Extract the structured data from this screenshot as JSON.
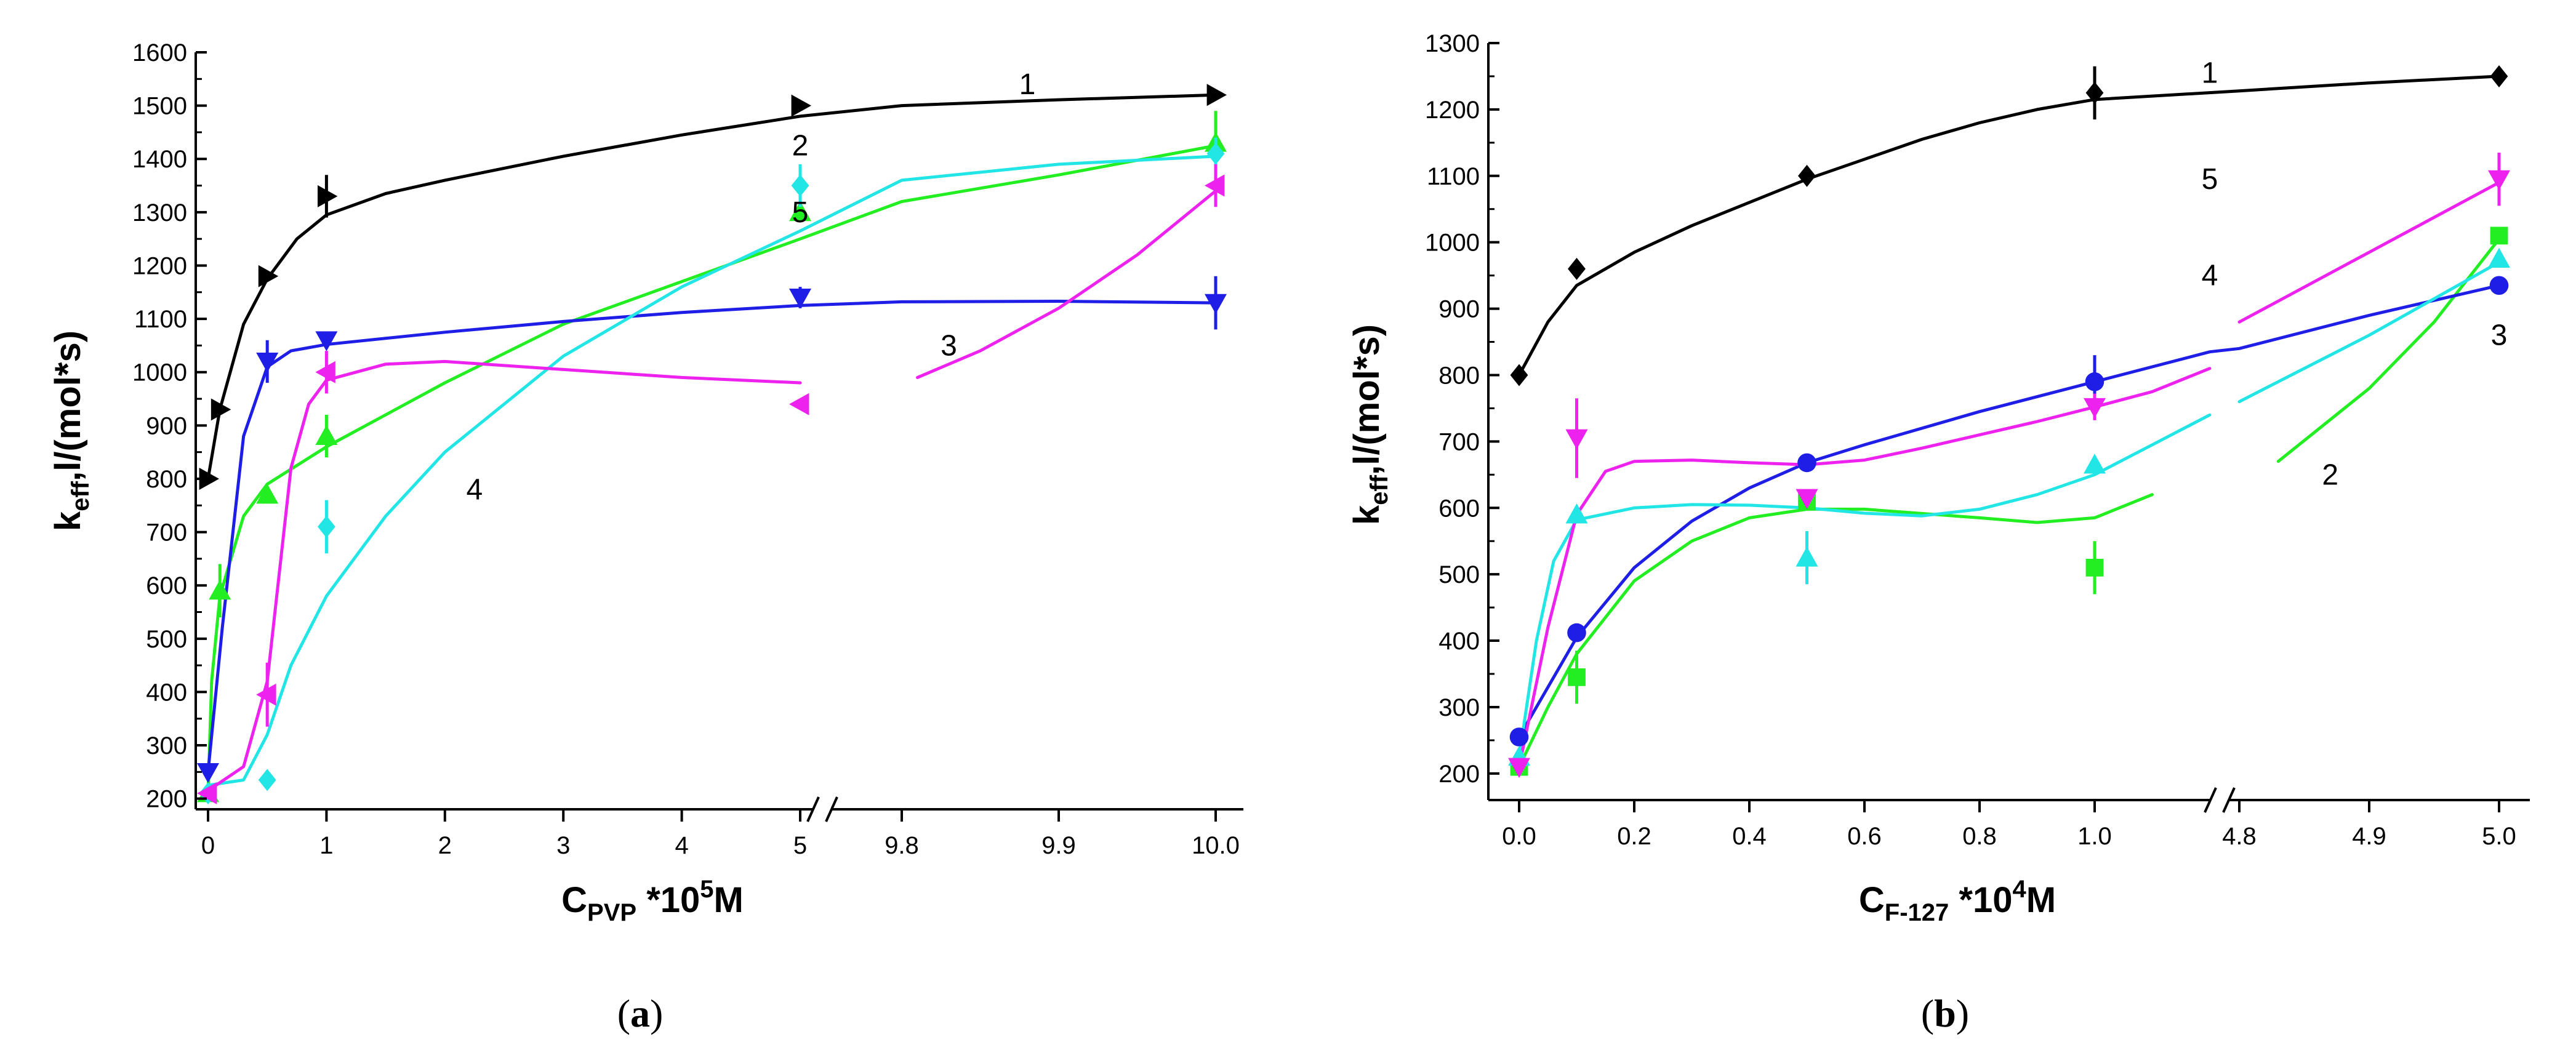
{
  "chart_data": [
    {
      "panel": "(a)",
      "panel_letter": "a",
      "type": "line",
      "title": "",
      "xlabel": {
        "main": "C",
        "sub": "PVP",
        "suffix": " *10",
        "sup": "5",
        "unit": "M"
      },
      "ylabel": {
        "main": "k",
        "sub": "eff",
        "rest": ",l/(mol*s)"
      },
      "ylim": [
        180,
        1600
      ],
      "y_ticks": [
        200,
        300,
        400,
        500,
        600,
        700,
        800,
        900,
        1000,
        1100,
        1200,
        1300,
        1400,
        1500,
        1600
      ],
      "x_break": "5 // 9.8",
      "x_ticks": [
        {
          "label": "0",
          "value": 0
        },
        {
          "label": "1",
          "value": 1
        },
        {
          "label": "2",
          "value": 2
        },
        {
          "label": "3",
          "value": 3
        },
        {
          "label": "4",
          "value": 4
        },
        {
          "label": "5",
          "value": 5
        },
        {
          "label": "9.8",
          "value": 9.8
        },
        {
          "label": "9.9",
          "value": 9.9
        },
        {
          "label": "10.0",
          "value": 10.0
        }
      ],
      "series": [
        {
          "name": "1",
          "color": "#000000",
          "marker": "triangle-right",
          "points": [
            [
              0,
              800
            ],
            [
              0.1,
              930
            ],
            [
              0.5,
              1180
            ],
            [
              1,
              1330
            ],
            [
              5,
              1500
            ],
            [
              10,
              1520
            ]
          ],
          "errors": [
            0,
            0,
            0,
            40,
            0,
            0
          ],
          "curve": [
            [
              0,
              800
            ],
            [
              0.1,
              930
            ],
            [
              0.3,
              1090
            ],
            [
              0.5,
              1175
            ],
            [
              0.75,
              1250
            ],
            [
              1,
              1295
            ],
            [
              1.5,
              1335
            ],
            [
              2,
              1360
            ],
            [
              3,
              1405
            ],
            [
              4,
              1445
            ],
            [
              5,
              1480
            ],
            [
              9.8,
              1500
            ],
            [
              9.9,
              1511
            ],
            [
              10,
              1520
            ]
          ],
          "label_pos": [
            9.88,
            1540
          ]
        },
        {
          "name": "2",
          "color": "#22ee22",
          "marker": "triangle-up",
          "points": [
            [
              0,
              210
            ],
            [
              0.1,
              590
            ],
            [
              0.5,
              770
            ],
            [
              1,
              880
            ],
            [
              5,
              1300
            ],
            [
              10,
              1430
            ]
          ],
          "errors": [
            0,
            50,
            0,
            40,
            0,
            60
          ],
          "curve": [
            [
              0,
              210
            ],
            [
              0.03,
              420
            ],
            [
              0.1,
              580
            ],
            [
              0.3,
              730
            ],
            [
              0.5,
              790
            ],
            [
              1,
              860
            ],
            [
              2,
              980
            ],
            [
              3,
              1090
            ],
            [
              4,
              1170
            ],
            [
              5,
              1250
            ],
            [
              9.8,
              1320
            ],
            [
              9.9,
              1370
            ],
            [
              10,
              1425
            ]
          ],
          "label_pos": [
            10.02,
            1425
          ]
        },
        {
          "name": "3",
          "color": "#1e1ee6",
          "marker": "triangle-down",
          "points": [
            [
              0,
              250
            ],
            [
              0.5,
              1020
            ],
            [
              1,
              1060
            ],
            [
              5,
              1140
            ],
            [
              10,
              1130
            ]
          ],
          "errors": [
            0,
            40,
            0,
            20,
            50
          ],
          "curve": [
            [
              0,
              250
            ],
            [
              0.12,
              520
            ],
            [
              0.3,
              880
            ],
            [
              0.5,
              1010
            ],
            [
              0.7,
              1040
            ],
            [
              1,
              1052
            ],
            [
              2,
              1075
            ],
            [
              3,
              1095
            ],
            [
              4,
              1112
            ],
            [
              5,
              1125
            ],
            [
              9.8,
              1132
            ],
            [
              9.9,
              1133
            ],
            [
              10,
              1130
            ]
          ],
          "label_pos": [
            9.83,
            1050
          ]
        },
        {
          "name": "4",
          "color": "#22e5e5",
          "marker": "diamond",
          "points": [
            [
              0,
              210
            ],
            [
              0.5,
              235
            ],
            [
              1,
              710
            ],
            [
              5,
              1350
            ],
            [
              10,
              1410
            ]
          ],
          "errors": [
            0,
            0,
            50,
            40,
            30
          ],
          "curve": [
            [
              0,
              225
            ],
            [
              0.3,
              235
            ],
            [
              0.5,
              320
            ],
            [
              0.7,
              450
            ],
            [
              1,
              580
            ],
            [
              1.5,
              730
            ],
            [
              2,
              850
            ],
            [
              3,
              1030
            ],
            [
              4,
              1160
            ],
            [
              5,
              1265
            ],
            [
              9.8,
              1360
            ],
            [
              9.9,
              1390
            ],
            [
              10,
              1405
            ]
          ],
          "label_pos": [
            2.25,
            780
          ]
        },
        {
          "name": "5",
          "color": "#ee22ee",
          "marker": "triangle-left",
          "points": [
            [
              0,
              210
            ],
            [
              0.5,
              395
            ],
            [
              1,
              1000
            ],
            [
              5,
              940
            ],
            [
              10,
              1350
            ]
          ],
          "errors": [
            0,
            60,
            40,
            0,
            40
          ],
          "curve": [
            [
              0,
              215
            ],
            [
              0.3,
              260
            ],
            [
              0.5,
              420
            ],
            [
              0.7,
              820
            ],
            [
              0.85,
              940
            ],
            [
              1,
              985
            ],
            [
              1.5,
              1015
            ],
            [
              2,
              1020
            ],
            [
              3,
              1005
            ],
            [
              4,
              990
            ],
            [
              5,
              980
            ]
          ],
          "curve2": [
            [
              9.81,
              990
            ],
            [
              9.85,
              1040
            ],
            [
              9.9,
              1120
            ],
            [
              9.95,
              1220
            ],
            [
              10,
              1340
            ]
          ],
          "label_pos": [
            9.78,
            1300
          ]
        }
      ]
    },
    {
      "panel": "(b)",
      "panel_letter": "b",
      "type": "line",
      "title": "",
      "xlabel": {
        "main": "C",
        "sub": "F-127",
        "suffix": " *10",
        "sup": "4",
        "unit": "M"
      },
      "ylabel": {
        "main": "k",
        "sub": "eff",
        "rest": ",l/(mol*s)"
      },
      "ylim": [
        160,
        1300
      ],
      "y_ticks": [
        200,
        300,
        400,
        500,
        600,
        700,
        800,
        900,
        1000,
        1100,
        1200,
        1300
      ],
      "x_break": "1.0 // 4.8",
      "x_ticks": [
        {
          "label": "0.0",
          "value": 0
        },
        {
          "label": "0.2",
          "value": 0.2
        },
        {
          "label": "0.4",
          "value": 0.4
        },
        {
          "label": "0.6",
          "value": 0.6
        },
        {
          "label": "0.8",
          "value": 0.8
        },
        {
          "label": "1.0",
          "value": 1.0
        },
        {
          "label": "4.8",
          "value": 4.8
        },
        {
          "label": "4.9",
          "value": 4.9
        },
        {
          "label": "5.0",
          "value": 5.0
        }
      ],
      "series": [
        {
          "name": "1",
          "color": "#000000",
          "marker": "diamond",
          "points": [
            [
              0,
              800
            ],
            [
              0.1,
              960
            ],
            [
              0.5,
              1100
            ],
            [
              1,
              1225
            ],
            [
              5,
              1250
            ]
          ],
          "errors": [
            0,
            0,
            0,
            40,
            0
          ],
          "curve": [
            [
              0,
              800
            ],
            [
              0.05,
              880
            ],
            [
              0.1,
              935
            ],
            [
              0.2,
              985
            ],
            [
              0.3,
              1025
            ],
            [
              0.4,
              1060
            ],
            [
              0.5,
              1095
            ],
            [
              0.6,
              1125
            ],
            [
              0.7,
              1155
            ],
            [
              0.8,
              1180
            ],
            [
              0.9,
              1200
            ],
            [
              1,
              1215
            ],
            [
              4.8,
              1228
            ],
            [
              4.9,
              1240
            ],
            [
              5,
              1250
            ]
          ],
          "label_pos": [
            5.06,
            1255
          ]
        },
        {
          "name": "2",
          "color": "#22ee22",
          "marker": "square",
          "points": [
            [
              0,
              210
            ],
            [
              0.1,
              345
            ],
            [
              0.5,
              610
            ],
            [
              1,
              510
            ],
            [
              5,
              1010
            ]
          ],
          "errors": [
            0,
            40,
            0,
            40,
            0
          ],
          "curve": [
            [
              0,
              210
            ],
            [
              0.05,
              300
            ],
            [
              0.1,
              380
            ],
            [
              0.2,
              490
            ],
            [
              0.3,
              550
            ],
            [
              0.4,
              585
            ],
            [
              0.5,
              598
            ],
            [
              0.6,
              598
            ],
            [
              0.8,
              585
            ],
            [
              0.9,
              578
            ],
            [
              1,
              585
            ],
            [
              1.1,
              620
            ]
          ],
          "curve2": [
            [
              4.83,
              670
            ],
            [
              4.9,
              780
            ],
            [
              4.95,
              880
            ],
            [
              5,
              1005
            ]
          ],
          "label_pos": [
            4.87,
            650
          ]
        },
        {
          "name": "3",
          "color": "#1e1ee6",
          "marker": "circle",
          "points": [
            [
              0,
              255
            ],
            [
              0.1,
              412
            ],
            [
              0.5,
              668
            ],
            [
              1,
              790
            ],
            [
              5,
              935
            ]
          ],
          "errors": [
            0,
            0,
            0,
            40,
            0
          ],
          "curve": [
            [
              0,
              255
            ],
            [
              0.05,
              330
            ],
            [
              0.1,
              405
            ],
            [
              0.2,
              510
            ],
            [
              0.3,
              580
            ],
            [
              0.4,
              630
            ],
            [
              0.5,
              668
            ],
            [
              0.6,
              695
            ],
            [
              0.8,
              745
            ],
            [
              1,
              790
            ],
            [
              1.2,
              835
            ],
            [
              4.8,
              840
            ],
            [
              4.9,
              890
            ],
            [
              5,
              935
            ]
          ],
          "label_pos": [
            5.0,
            860
          ]
        },
        {
          "name": "4",
          "color": "#22e5e5",
          "marker": "triangle-up",
          "points": [
            [
              0,
              225
            ],
            [
              0.1,
              590
            ],
            [
              0.5,
              525
            ],
            [
              1,
              665
            ],
            [
              5,
              975
            ]
          ],
          "errors": [
            0,
            0,
            40,
            0,
            0
          ],
          "curve": [
            [
              0,
              225
            ],
            [
              0.03,
              400
            ],
            [
              0.06,
              520
            ],
            [
              0.1,
              582
            ],
            [
              0.2,
              600
            ],
            [
              0.3,
              605
            ],
            [
              0.4,
              604
            ],
            [
              0.5,
              600
            ],
            [
              0.6,
              592
            ],
            [
              0.7,
              588
            ],
            [
              0.8,
              598
            ],
            [
              0.9,
              620
            ],
            [
              1,
              650
            ],
            [
              1.1,
              695
            ],
            [
              1.2,
              740
            ]
          ],
          "curve2": [
            [
              4.8,
              760
            ],
            [
              4.9,
              860
            ],
            [
              5,
              970
            ]
          ],
          "label_pos": [
            5.06,
            950
          ]
        },
        {
          "name": "5",
          "color": "#ee22ee",
          "marker": "triangle-down",
          "points": [
            [
              0,
              210
            ],
            [
              0.1,
              705
            ],
            [
              0.5,
              615
            ],
            [
              1,
              752
            ],
            [
              5,
              1095
            ]
          ],
          "errors": [
            0,
            60,
            0,
            20,
            40
          ],
          "curve": [
            [
              0,
              210
            ],
            [
              0.05,
              420
            ],
            [
              0.1,
              590
            ],
            [
              0.15,
              655
            ],
            [
              0.2,
              670
            ],
            [
              0.3,
              672
            ],
            [
              0.4,
              668
            ],
            [
              0.5,
              665
            ],
            [
              0.6,
              672
            ],
            [
              0.7,
              690
            ],
            [
              0.8,
              710
            ],
            [
              0.9,
              730
            ],
            [
              1,
              752
            ],
            [
              1.1,
              775
            ],
            [
              1.2,
              810
            ]
          ],
          "curve2": [
            [
              4.8,
              880
            ],
            [
              4.9,
              985
            ],
            [
              5,
              1090
            ]
          ],
          "label_pos": [
            5.06,
            1095
          ]
        }
      ]
    }
  ]
}
